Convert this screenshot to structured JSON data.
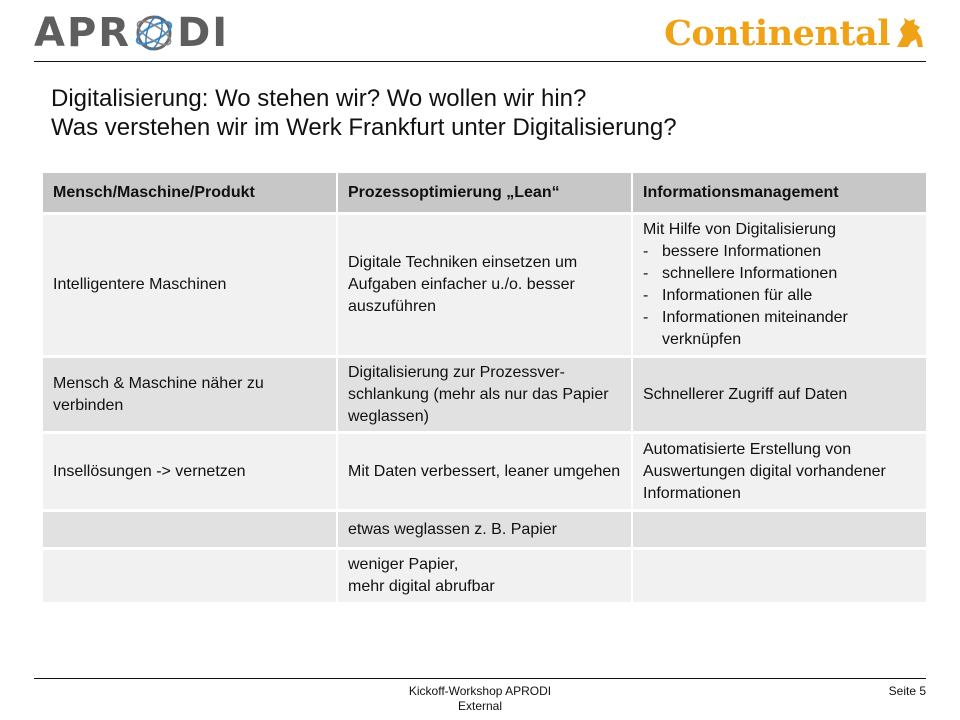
{
  "header": {
    "aprodi_logo": {
      "left": "APR",
      "right": "DI"
    },
    "continental_logo": {
      "text": "Continental",
      "colors": {
        "brand": "#f0a216"
      }
    }
  },
  "title": {
    "line1": "Digitalisierung: Wo stehen wir? Wo wollen wir hin?",
    "line2": "Was verstehen wir im Werk Frankfurt unter Digitalisierung?"
  },
  "table": {
    "headers": [
      "Mensch/Maschine/Produkt",
      "Prozessoptimierung „Lean“",
      "Informationsmanagement"
    ],
    "rows": [
      {
        "c1": "Intelligentere Maschinen",
        "c2": "Digitale Techniken einsetzen um Aufgaben einfacher u./o. besser auszuführen",
        "c3_intro": "Mit Hilfe von Digitalisierung",
        "c3_bullets": [
          {
            "dash": "-",
            "text": "bessere Informationen"
          },
          {
            "dash": "-",
            "text": "schnellere Informationen"
          },
          {
            "dash": "-",
            "text": "Informationen für alle"
          },
          {
            "dash": "-",
            "text": "Informationen miteinander verknüpfen"
          }
        ]
      },
      {
        "c1": "Mensch & Maschine näher zu verbinden",
        "c2": "Digitalisierung zur Prozessver-schlankung (mehr als nur das Papier weglassen)",
        "c3": "Schnellerer Zugriff auf Daten"
      },
      {
        "c1": "Insellösungen -> vernetzen",
        "c2": "Mit Daten verbessert, leaner umgehen",
        "c3": "Automatisierte Erstellung von Auswertungen digital vorhandener Informationen"
      },
      {
        "c1": "",
        "c2": "etwas weglassen z. B. Papier",
        "c3": ""
      },
      {
        "c1": "",
        "c2_line1": "weniger Papier,",
        "c2_line2": "mehr digital abrufbar",
        "c3": ""
      }
    ]
  },
  "footer": {
    "center_line1": "Kickoff-Workshop APRODI",
    "center_line2": "External",
    "page": "Seite 5"
  }
}
